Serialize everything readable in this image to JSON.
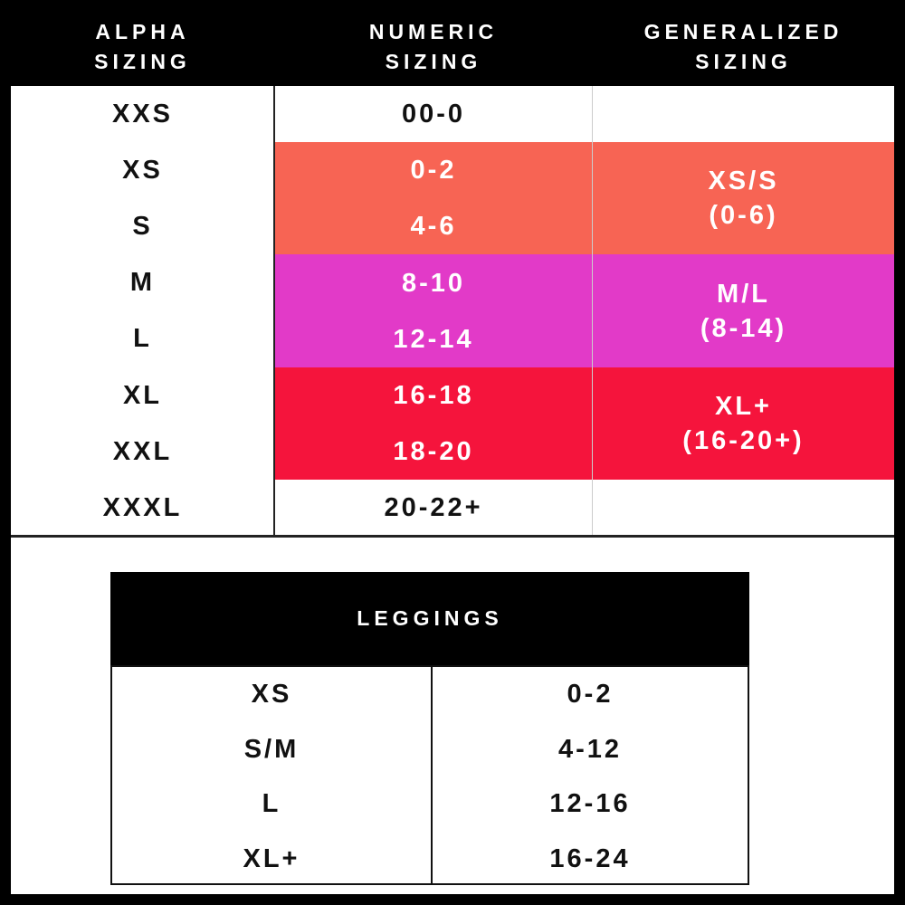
{
  "main_table": {
    "headers": [
      [
        "ALPHA",
        "SIZING"
      ],
      [
        "NUMERIC",
        "SIZING"
      ],
      [
        "GENERALIZED",
        "SIZING"
      ]
    ],
    "rows": [
      [
        "XXS",
        "00-0"
      ],
      [
        "XS",
        "0-2"
      ],
      [
        "S",
        "4-6"
      ],
      [
        "M",
        "8-10"
      ],
      [
        "L",
        "12-14"
      ],
      [
        "XL",
        "16-18"
      ],
      [
        "XXL",
        "18-20"
      ],
      [
        "XXXL",
        "20-22+"
      ]
    ],
    "generalized": [
      {
        "label": "XS/S",
        "range": "(0-6)"
      },
      {
        "label": "M/L",
        "range": "(8-14)"
      },
      {
        "label": "XL+",
        "range": "(16-20+)"
      }
    ]
  },
  "leggings_table": {
    "title": "LEGGINGS",
    "rows": [
      [
        "XS",
        "0-2"
      ],
      [
        "S/M",
        "4-12"
      ],
      [
        "L",
        "12-16"
      ],
      [
        "XL+",
        "16-24"
      ]
    ]
  }
}
